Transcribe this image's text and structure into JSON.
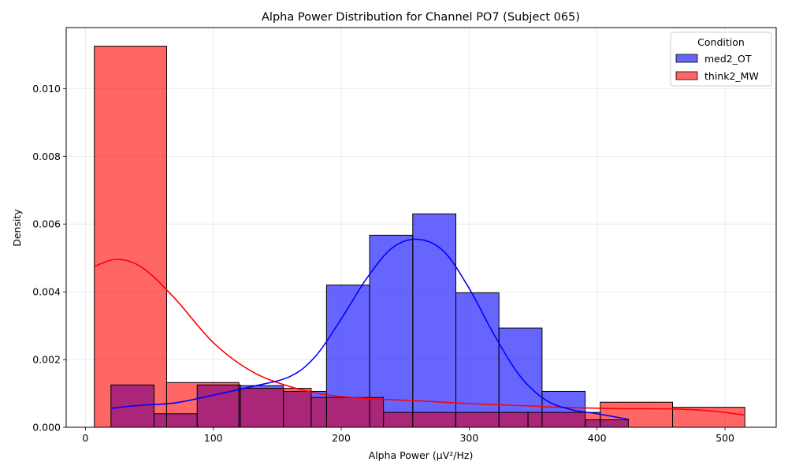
{
  "chart_data": {
    "type": "histogram",
    "title": "Alpha Power Distribution for Channel PO7 (Subject 065)",
    "xlabel": "Alpha Power (µV²/Hz)",
    "ylabel": "Density",
    "xlim": [
      -15,
      540
    ],
    "ylim": [
      0,
      0.0118
    ],
    "x_ticks": [
      0,
      100,
      200,
      300,
      400,
      500
    ],
    "y_ticks": [
      0.0,
      0.002,
      0.004,
      0.006,
      0.008,
      0.01
    ],
    "y_tick_labels": [
      "0.000",
      "0.002",
      "0.004",
      "0.006",
      "0.008",
      "0.010"
    ],
    "grid": true,
    "legend": {
      "title": "Condition",
      "placement": "top-right"
    },
    "series": [
      {
        "name": "think2_MW",
        "color": "#ff0000",
        "bin_edges": [
          7,
          63.5,
          120,
          176.5,
          233,
          289.5,
          346,
          402.5,
          459,
          515.5
        ],
        "densities": [
          0.01125,
          0.00132,
          0.00115,
          0.00088,
          0.00044,
          0.00044,
          0.00044,
          0.00074,
          0.00059
        ],
        "kde": [
          [
            7,
            0.00475
          ],
          [
            25,
            0.00496
          ],
          [
            45,
            0.0047
          ],
          [
            70,
            0.0038
          ],
          [
            100,
            0.0025
          ],
          [
            130,
            0.00165
          ],
          [
            160,
            0.0012
          ],
          [
            190,
            0.00095
          ],
          [
            220,
            0.00085
          ],
          [
            260,
            0.00078
          ],
          [
            300,
            0.0007
          ],
          [
            340,
            0.00064
          ],
          [
            380,
            0.00058
          ],
          [
            420,
            0.00055
          ],
          [
            460,
            0.00054
          ],
          [
            490,
            0.00048
          ],
          [
            515,
            0.00036
          ]
        ]
      },
      {
        "name": "med2_OT",
        "color": "#0000ff",
        "bin_edges": [
          20,
          53.7,
          87.4,
          121.1,
          154.8,
          188.5,
          222.2,
          255.9,
          289.6,
          323.3,
          357,
          390.7,
          424.4
        ],
        "densities": [
          0.00125,
          0.0004,
          0.00125,
          0.00123,
          0.00106,
          0.0042,
          0.00567,
          0.0063,
          0.00397,
          0.00293,
          0.00106,
          0.00022
        ],
        "kde": [
          [
            20,
            0.00056
          ],
          [
            40,
            0.00064
          ],
          [
            70,
            0.00072
          ],
          [
            100,
            0.00095
          ],
          [
            130,
            0.0012
          ],
          [
            160,
            0.0015
          ],
          [
            180,
            0.0021
          ],
          [
            200,
            0.0032
          ],
          [
            220,
            0.0044
          ],
          [
            240,
            0.0053
          ],
          [
            260,
            0.00555
          ],
          [
            280,
            0.0052
          ],
          [
            300,
            0.0041
          ],
          [
            320,
            0.0027
          ],
          [
            340,
            0.0015
          ],
          [
            360,
            0.0008
          ],
          [
            380,
            0.00052
          ],
          [
            400,
            0.0004
          ],
          [
            425,
            0.00023
          ]
        ]
      }
    ],
    "overlap_color": "#c02660"
  }
}
